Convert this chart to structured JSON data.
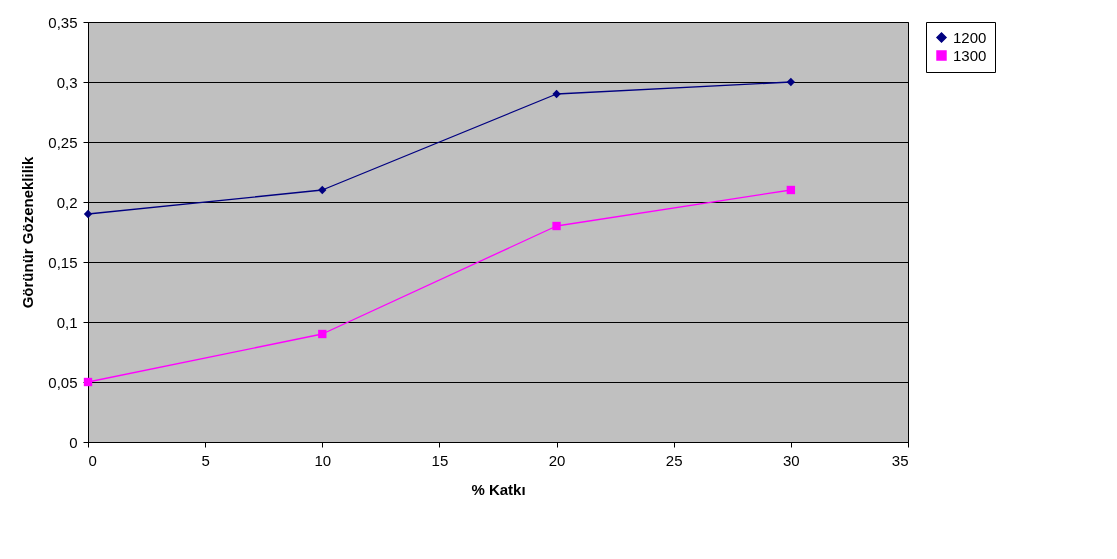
{
  "chart_data": {
    "type": "line",
    "xlabel": "% Katkı",
    "ylabel": "Görünür Gözeneklilik",
    "x": [
      0,
      10,
      20,
      30
    ],
    "series": [
      {
        "name": "1200",
        "color": "#000080",
        "marker": "diamond",
        "values": [
          0.19,
          0.21,
          0.29,
          0.3
        ]
      },
      {
        "name": "1300",
        "color": "#ff00ff",
        "marker": "square",
        "values": [
          0.05,
          0.09,
          0.18,
          0.21
        ]
      }
    ],
    "xlim": [
      0,
      35
    ],
    "xticks": [
      0,
      5,
      10,
      15,
      20,
      25,
      30,
      35
    ],
    "ylim": [
      0,
      0.35
    ],
    "yticks": [
      {
        "value": 0,
        "label": "0"
      },
      {
        "value": 0.05,
        "label": "0,05"
      },
      {
        "value": 0.1,
        "label": "0,1"
      },
      {
        "value": 0.15,
        "label": "0,15"
      },
      {
        "value": 0.2,
        "label": "0,2"
      },
      {
        "value": 0.25,
        "label": "0,25"
      },
      {
        "value": 0.3,
        "label": "0,3"
      },
      {
        "value": 0.35,
        "label": "0,35"
      }
    ],
    "grid": "y",
    "legend": "right",
    "line_style": "solid"
  }
}
